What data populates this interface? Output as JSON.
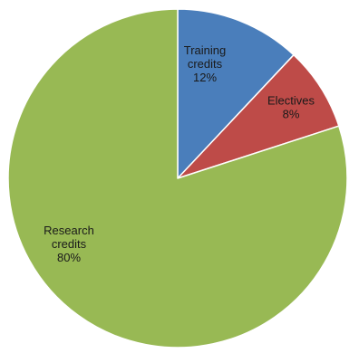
{
  "chart_data": {
    "type": "pie",
    "title": "",
    "slices": [
      {
        "label": [
          "Training",
          "credits"
        ],
        "percent_text": "12%",
        "value": 12,
        "color": "#4a7ebb"
      },
      {
        "label": [
          "Electives"
        ],
        "percent_text": "8%",
        "value": 8,
        "color": "#be4b48"
      },
      {
        "label": [
          "Research",
          "credits"
        ],
        "percent_text": "80%",
        "value": 80,
        "color": "#98b954"
      }
    ],
    "start_angle_deg": 0,
    "direction": "clockwise",
    "legend": "none"
  }
}
